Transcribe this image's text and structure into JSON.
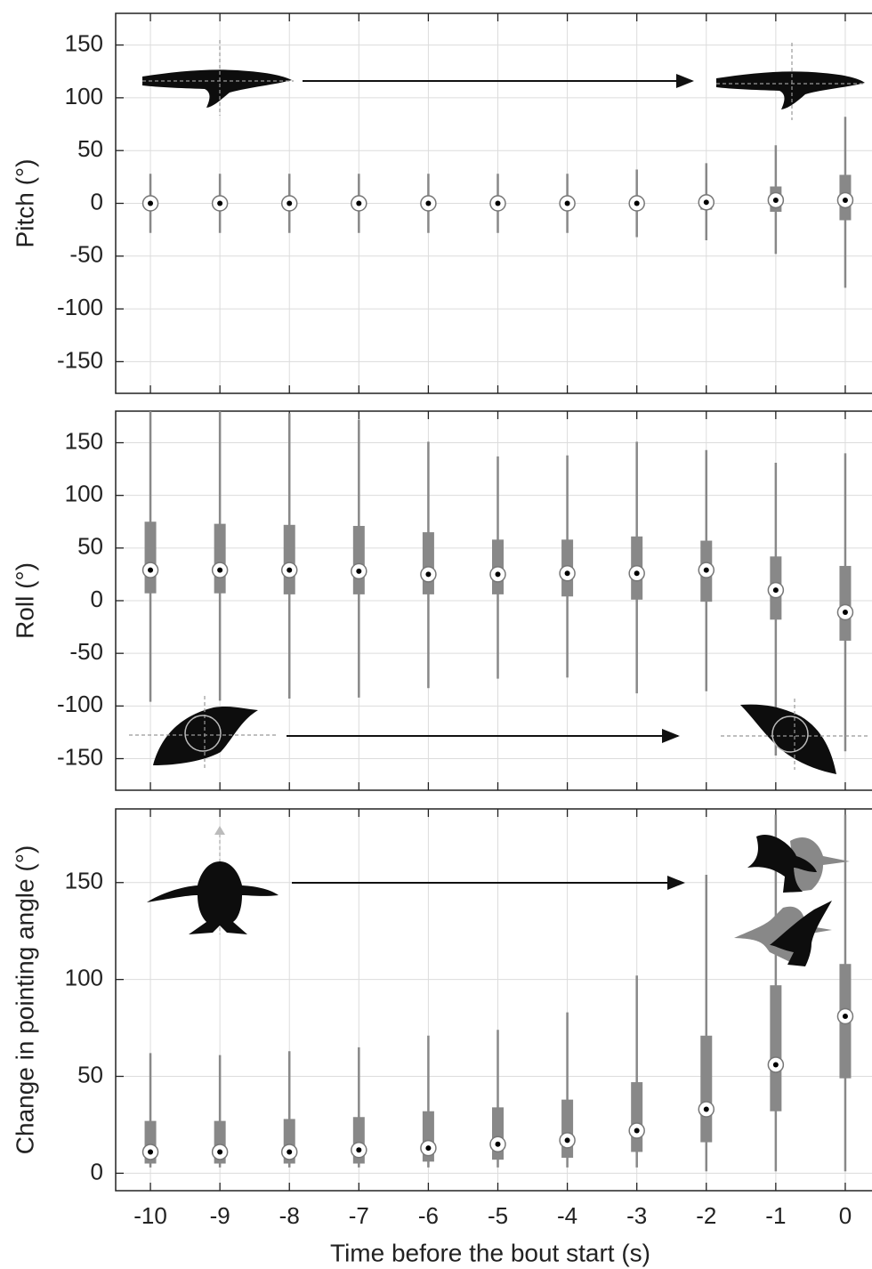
{
  "chart_data": [
    {
      "type": "box",
      "ylabel": "Pitch (°)",
      "x": [
        -10,
        -9,
        -8,
        -7,
        -6,
        -5,
        -4,
        -3,
        -2,
        -1,
        0
      ],
      "xlim": [
        -10.5,
        0.5
      ],
      "xticks": [
        -10,
        -9,
        -8,
        -7,
        -6,
        -5,
        -4,
        -3,
        -2,
        -1,
        0
      ],
      "ylim": [
        -180,
        180
      ],
      "yticks": [
        -150,
        -100,
        -50,
        0,
        50,
        100,
        150
      ],
      "grid": true,
      "color": "#888888",
      "median": [
        0,
        0,
        0,
        0,
        0,
        0,
        0,
        0,
        1,
        3,
        3
      ],
      "q1": [
        -3,
        -3,
        -3,
        -3,
        -3,
        -3,
        -3,
        -3,
        -6,
        -8,
        -16
      ],
      "q3": [
        3,
        3,
        3,
        3,
        3,
        3,
        3,
        3,
        6,
        16,
        27
      ],
      "whisker_low": [
        -28,
        -28,
        -28,
        -28,
        -28,
        -28,
        -28,
        -32,
        -35,
        -48,
        -80
      ],
      "whisker_high": [
        28,
        28,
        28,
        28,
        28,
        28,
        28,
        32,
        38,
        55,
        82
      ]
    },
    {
      "type": "box",
      "ylabel": "Roll (°)",
      "x": [
        -10,
        -9,
        -8,
        -7,
        -6,
        -5,
        -4,
        -3,
        -2,
        -1,
        0
      ],
      "xlim": [
        -10.5,
        0.5
      ],
      "xticks": [
        -10,
        -9,
        -8,
        -7,
        -6,
        -5,
        -4,
        -3,
        -2,
        -1,
        0
      ],
      "ylim": [
        -180,
        180
      ],
      "yticks": [
        -150,
        -100,
        -50,
        0,
        50,
        100,
        150
      ],
      "grid": true,
      "color": "#888888",
      "median": [
        29,
        29,
        29,
        28,
        25,
        25,
        26,
        26,
        29,
        10,
        -11
      ],
      "q1": [
        7,
        7,
        6,
        6,
        6,
        6,
        4,
        1,
        -1,
        -18,
        -38
      ],
      "q3": [
        75,
        73,
        72,
        71,
        65,
        58,
        58,
        61,
        57,
        42,
        33
      ],
      "whisker_low": [
        -96,
        -95,
        -93,
        -92,
        -83,
        -74,
        -73,
        -88,
        -86,
        -147,
        -143
      ],
      "whisker_high": [
        180,
        180,
        178,
        172,
        151,
        137,
        138,
        151,
        143,
        131,
        140
      ]
    },
    {
      "type": "box",
      "ylabel": "Change in pointing angle (°)",
      "xlabel": "Time before the bout start (s)",
      "x": [
        -10,
        -9,
        -8,
        -7,
        -6,
        -5,
        -4,
        -3,
        -2,
        -1,
        0
      ],
      "xlim": [
        -10.5,
        0.5
      ],
      "xticks": [
        -10,
        -9,
        -8,
        -7,
        -6,
        -5,
        -4,
        -3,
        -2,
        -1,
        0
      ],
      "ylim": [
        -9,
        188
      ],
      "yticks": [
        0,
        50,
        100,
        150
      ],
      "grid": true,
      "color": "#888888",
      "median": [
        11,
        11,
        11,
        12,
        13,
        15,
        17,
        22,
        33,
        56,
        81
      ],
      "q1": [
        5,
        5,
        5,
        5,
        6,
        7,
        8,
        11,
        16,
        32,
        49
      ],
      "q3": [
        27,
        27,
        28,
        29,
        32,
        34,
        38,
        47,
        71,
        97,
        108
      ],
      "whisker_low": [
        3,
        3,
        3,
        3,
        3,
        3,
        3,
        3,
        1,
        1,
        1
      ],
      "whisker_high": [
        62,
        61,
        63,
        65,
        71,
        74,
        83,
        102,
        154,
        185,
        185
      ]
    }
  ]
}
